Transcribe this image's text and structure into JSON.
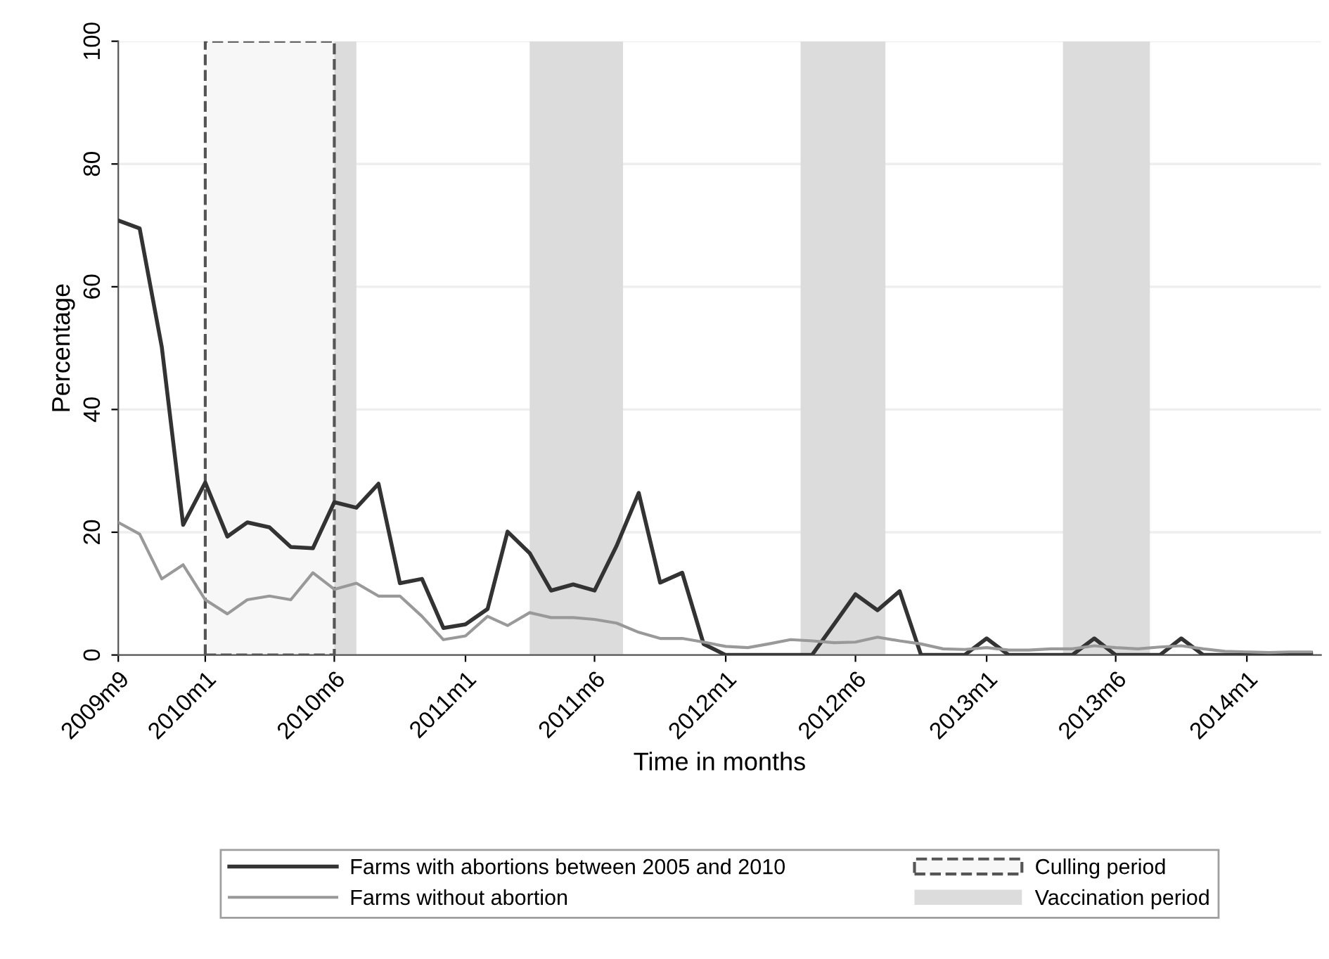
{
  "chart_data": {
    "type": "line",
    "xlabel": "Time in months",
    "ylabel": "Percentage",
    "x": [
      "2009-09",
      "2009-10",
      "2009-11",
      "2009-12",
      "2010-01",
      "2010-02",
      "2010-03",
      "2010-04",
      "2010-05",
      "2010-06",
      "2010-07",
      "2010-08",
      "2010-09",
      "2010-10",
      "2010-11",
      "2010-12",
      "2011-01",
      "2011-02",
      "2011-03",
      "2011-04",
      "2011-05",
      "2011-06",
      "2011-07",
      "2011-08",
      "2011-09",
      "2011-10",
      "2011-11",
      "2011-12",
      "2012-01",
      "2012-02",
      "2012-03",
      "2012-04",
      "2012-05",
      "2012-06",
      "2012-07",
      "2012-08",
      "2012-09",
      "2012-10",
      "2012-11",
      "2012-12",
      "2013-01",
      "2013-02",
      "2013-03",
      "2013-04",
      "2013-05",
      "2013-06",
      "2013-07",
      "2013-08",
      "2013-09",
      "2013-10",
      "2013-11",
      "2013-12",
      "2014-01",
      "2014-02",
      "2014-03",
      "2014-04"
    ],
    "series": [
      {
        "name": "Farms with abortions between 2005 and 2010",
        "color": "#333333",
        "values": [
          70.8,
          69.5,
          50.2,
          21.2,
          28.1,
          19.3,
          21.6,
          20.8,
          17.6,
          17.4,
          24.9,
          24.0,
          27.9,
          11.7,
          12.4,
          4.4,
          5.0,
          7.5,
          20.1,
          16.6,
          10.5,
          11.5,
          10.5,
          17.8,
          26.4,
          11.8,
          13.4,
          1.8,
          0,
          0,
          0,
          0,
          0,
          5,
          9.9,
          7.3,
          10.4,
          0,
          0,
          0,
          2.7,
          0,
          0,
          0,
          0,
          2.7,
          0,
          0,
          0,
          2.7,
          0,
          0,
          0,
          0,
          0,
          0.3
        ]
      },
      {
        "name": "Farms without abortion",
        "color": "#999999",
        "values": [
          21.6,
          19.7,
          12.4,
          14.7,
          9.0,
          6.7,
          9.0,
          9.6,
          9.0,
          13.4,
          10.7,
          11.7,
          9.6,
          9.6,
          6.3,
          2.5,
          3.1,
          6.3,
          4.8,
          6.9,
          6.1,
          6.1,
          5.8,
          5.2,
          3.7,
          2.7,
          2.7,
          2.1,
          1.4,
          1.2,
          1.8,
          2.5,
          2.3,
          2.0,
          2.1,
          2.9,
          2.3,
          1.8,
          1.0,
          0.9,
          1.2,
          0.8,
          0.8,
          1.0,
          1.0,
          1.5,
          1.2,
          1.0,
          1.3,
          1.5,
          1.0,
          0.6,
          0.5,
          0.4,
          0.5,
          0.5
        ]
      }
    ],
    "xlim": [
      "2009-09",
      "2014-04-15"
    ],
    "xticks": [
      {
        "value": "2009-09",
        "label": "2009m9"
      },
      {
        "value": "2010-01",
        "label": "2010m1"
      },
      {
        "value": "2010-07",
        "label": "2010m6"
      },
      {
        "value": "2011-01",
        "label": "2011m1"
      },
      {
        "value": "2011-07",
        "label": "2011m6"
      },
      {
        "value": "2012-01",
        "label": "2012m1"
      },
      {
        "value": "2012-07",
        "label": "2012m6"
      },
      {
        "value": "2013-01",
        "label": "2013m1"
      },
      {
        "value": "2013-07",
        "label": "2013m6"
      },
      {
        "value": "2014-01",
        "label": "2014m1"
      }
    ],
    "ylim": [
      0,
      100
    ],
    "yticks": [
      0,
      20,
      40,
      60,
      80,
      100
    ],
    "bands": [
      {
        "axis": "x",
        "from": "2010-01",
        "to": "2010-07",
        "label": "Culling period",
        "color": "#f7f7f7"
      },
      {
        "axis": "x",
        "from": "2010-04",
        "to": "2010-08",
        "label": "Vaccination period",
        "color": "#dcdcdc"
      },
      {
        "axis": "x",
        "from": "2011-04",
        "to": "2011-08-10",
        "color": "#dcdcdc"
      },
      {
        "axis": "x",
        "from": "2012-04-15",
        "to": "2012-08-12",
        "color": "#dcdcdc"
      },
      {
        "axis": "x",
        "from": "2013-04-18",
        "to": "2013-08-18",
        "color": "#dcdcdc"
      }
    ],
    "grid": "y",
    "legend": "bottom",
    "marker": "none",
    "line_style": "solid"
  }
}
